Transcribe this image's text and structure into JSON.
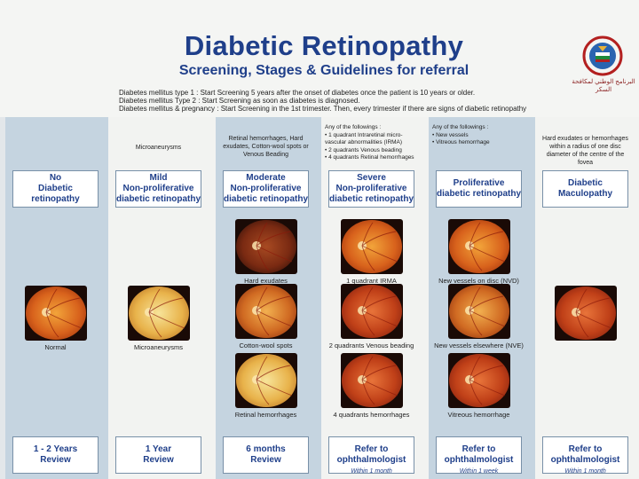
{
  "header": {
    "title": "Diabetic Retinopathy",
    "subtitle": "Screening, Stages & Guidelines for referral",
    "guidelines": [
      "Diabetes mellitus type 1 : Start Screening 5 years after the onset of diabetes once the patient is 10 years or older.",
      "Diabetes mellitus Type 2 : Start Screening as soon as diabetes is diagnosed.",
      "Diabetes mellitus & pregnancy : Start Screening in the 1st trimester. Then, every trimester if there are signs of diabetic retinopathy"
    ],
    "logo_text": "البرنامج الوطني لمكافحة السكر",
    "logo_icon": "kuwait-emblem-icon"
  },
  "columns": [
    {
      "criteria": "",
      "stage": [
        "No",
        "Diabetic retinopathy"
      ],
      "images": [
        {
          "caption": "Normal",
          "kind": "normal"
        }
      ],
      "action": {
        "line1": "1 - 2 Years",
        "line2": "Review",
        "sub": ""
      }
    },
    {
      "criteria": "Microaneurysms",
      "stage": [
        "Mild",
        "Non-proliferative",
        "diabetic retinopathy"
      ],
      "images": [
        {
          "caption": "Microaneurysms",
          "kind": "pale"
        }
      ],
      "action": {
        "line1": "1 Year",
        "line2": "Review",
        "sub": ""
      }
    },
    {
      "criteria": "Retinal hemorrhages, Hard exudates, Cotton-wool spots or Venous Beading",
      "stage": [
        "Moderate",
        "Non-proliferative",
        "diabetic retinopathy"
      ],
      "images": [
        {
          "caption": "Hard exudates",
          "kind": "dark"
        },
        {
          "caption": "Cotton-wool spots",
          "kind": "spots"
        },
        {
          "caption": "Retinal hemorrhages",
          "kind": "pale"
        }
      ],
      "action": {
        "line1": "6 months",
        "line2": "Review",
        "sub": ""
      }
    },
    {
      "criteria_title": "Any of the followings :",
      "criteria_items": [
        "• 1 quadrant  Intraretinal micro-",
        "  vascular abnormalities (IRMA)",
        "• 2 quadrants Venous beading",
        "• 4 quadrants Retinal hemorrhages"
      ],
      "stage": [
        "Severe",
        "Non-proliferative",
        "diabetic retinopathy"
      ],
      "images": [
        {
          "caption": "1 quadrant  IRMA",
          "kind": "normal"
        },
        {
          "caption": "2 quadrants Venous beading",
          "kind": "red"
        },
        {
          "caption": "4 quadrants hemorrhages",
          "kind": "red"
        }
      ],
      "action": {
        "line1": "Refer to",
        "line2": "ophthalmologist",
        "sub": "Within 1 month"
      }
    },
    {
      "criteria_title": "Any of the followings :",
      "criteria_items": [
        "•  New vessels",
        "•  Vitreous hemorrhage"
      ],
      "stage": [
        "Proliferative",
        "diabetic retinopathy"
      ],
      "images": [
        {
          "caption": "New vessels on disc (NVD)",
          "kind": "normal"
        },
        {
          "caption": "New vessels elsewhere (NVE)",
          "kind": "spots"
        },
        {
          "caption": "Vitreous hemorrhage",
          "kind": "red"
        }
      ],
      "action": {
        "line1": "Refer to",
        "line2": "ophthalmologist",
        "sub": "Within 1 week"
      }
    },
    {
      "criteria": "Hard exudates or hemorrhages within a radius of one disc diameter of the centre of the fovea",
      "stage": [
        "Diabetic",
        "Maculopathy"
      ],
      "images": [
        {
          "caption": "",
          "kind": "red"
        }
      ],
      "action": {
        "line1": "Refer to",
        "line2": "ophthalmologist",
        "sub": "Within 1 month"
      }
    }
  ],
  "colors": {
    "title": "#1f3f8a",
    "odd_column": "#f2f3f1",
    "even_column": "#c5d4e0",
    "box_border": "#7890a8"
  }
}
